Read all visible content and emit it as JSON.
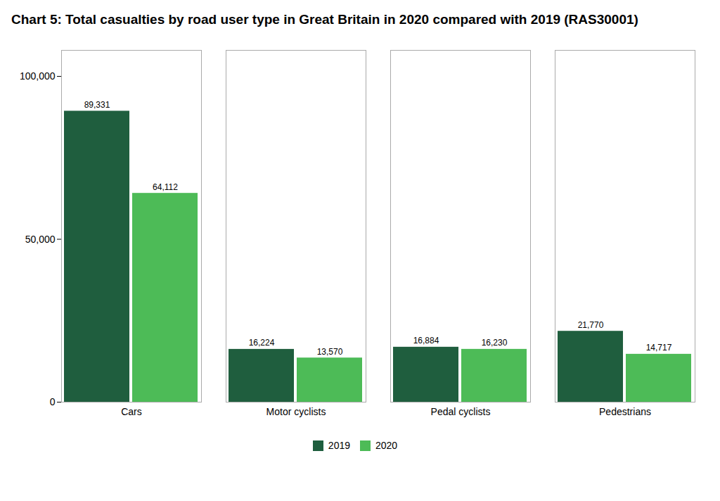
{
  "chart_data": {
    "type": "bar",
    "title": "Chart 5: Total casualties by road user type in Great Britain in 2020 compared with 2019 (RAS30001)",
    "categories": [
      "Cars",
      "Motor cyclists",
      "Pedal cyclists",
      "Pedestrians"
    ],
    "series": [
      {
        "name": "2019",
        "color": "#1f5e3e",
        "values": [
          89331,
          16224,
          16884,
          21770
        ],
        "value_labels": [
          "89,331",
          "16,224",
          "16,884",
          "21,770"
        ]
      },
      {
        "name": "2020",
        "color": "#4dbb57",
        "values": [
          64112,
          13570,
          16230,
          14717
        ],
        "value_labels": [
          "64,112",
          "13,570",
          "16,230",
          "14,717"
        ]
      }
    ],
    "ylim": [
      0,
      108000
    ],
    "yticks": [
      0,
      {
        "value": 50000,
        "label": "50,000"
      },
      {
        "value": 100000,
        "label": "100,000"
      }
    ],
    "grid": false,
    "data_labels": true,
    "legend": "bottom"
  }
}
